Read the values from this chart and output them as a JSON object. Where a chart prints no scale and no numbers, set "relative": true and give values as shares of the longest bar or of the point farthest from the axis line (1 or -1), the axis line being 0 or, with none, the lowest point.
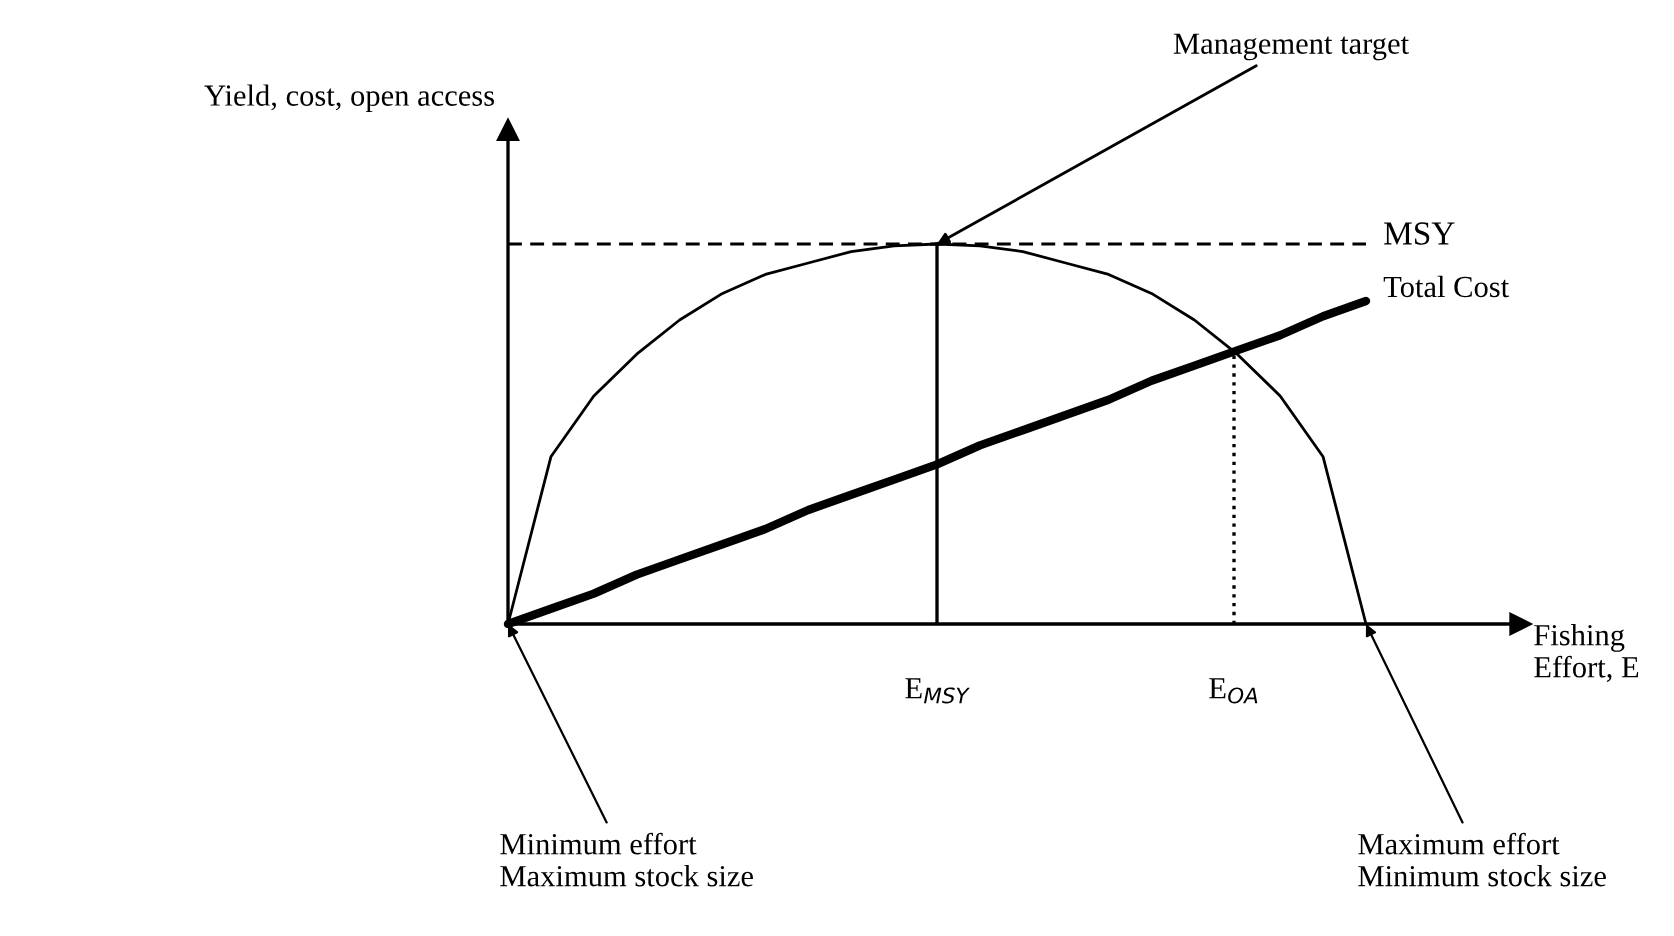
{
  "chart_data": {
    "type": "line",
    "relative": true,
    "ylabel": "Yield, cost, open access",
    "categories": [
      null,
      null,
      null,
      null,
      null,
      null,
      null,
      null,
      null,
      null,
      null,
      null,
      null,
      null,
      null,
      null,
      null,
      null,
      null,
      null,
      null
    ],
    "series": [
      {
        "color": "#000000",
        "values": [
          0,
          0.44,
          0.6,
          0.71,
          0.8,
          0.87,
          0.92,
          0.95,
          0.98,
          0.995,
          1,
          0.995,
          0.98,
          0.95,
          0.92,
          0.87,
          0.8,
          0.71,
          0.6,
          0.44,
          0
        ]
      },
      {
        "name": "Total Cost",
        "color": "#000000",
        "values": [
          0,
          0.04,
          0.08,
          0.13,
          0.17,
          0.21,
          0.25,
          0.3,
          0.34,
          0.38,
          0.42,
          0.47,
          0.51,
          0.55,
          0.59,
          0.64,
          0.68,
          0.72,
          0.76,
          0.81,
          0.85
        ]
      }
    ],
    "ref_lines": [
      {
        "axis": "y",
        "value": 1,
        "label": "MSY",
        "line_style": "dashed"
      }
    ],
    "annotations": [
      "Management target",
      "Minimum effort\nMaximum stock size",
      "Maximum effort\nMinimum stock size",
      "E$_{MSY}$",
      "E$_{OA}$",
      "Fishing Effort, E"
    ]
  }
}
